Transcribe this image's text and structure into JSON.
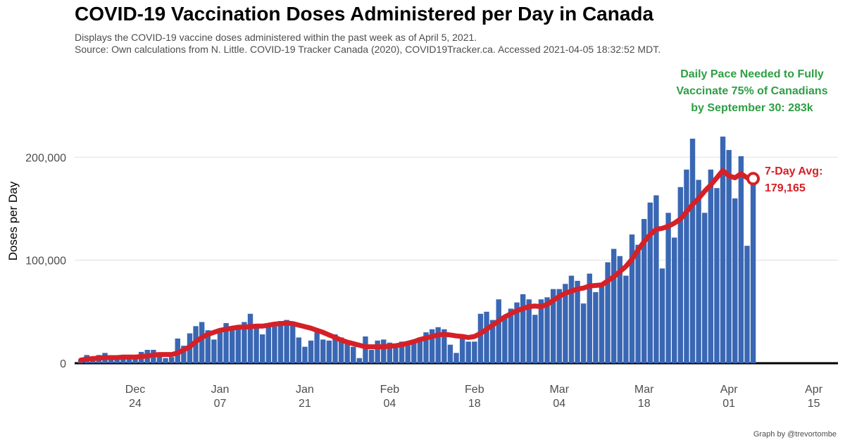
{
  "chart_data": {
    "type": "bar",
    "title": "COVID-19 Vaccination Doses Administered per Day in Canada",
    "subtitle": [
      "Displays the COVID-19 vaccine doses administered within the past week as of April 5, 2021.",
      "Source: Own calculations from N. Little. COVID-19 Tracker Canada (2020), COVID19Tracker.ca. Accessed 2021-04-05 18:32:52 MDT."
    ],
    "ylabel": "Doses per Day",
    "xlabel": "",
    "ylim": [
      0,
      205000
    ],
    "xlim": [
      "2020-12-14",
      "2021-04-19"
    ],
    "y_ticks": [
      {
        "value": 0,
        "label": "0"
      },
      {
        "value": 100000,
        "label": "100,000"
      },
      {
        "value": 200000,
        "label": "200,000"
      }
    ],
    "x_ticks": [
      {
        "date": "2020-12-24",
        "month": "Dec",
        "day": "24"
      },
      {
        "date": "2021-01-07",
        "month": "Jan",
        "day": "07"
      },
      {
        "date": "2021-01-21",
        "month": "Jan",
        "day": "21"
      },
      {
        "date": "2021-02-04",
        "month": "Feb",
        "day": "04"
      },
      {
        "date": "2021-02-18",
        "month": "Feb",
        "day": "18"
      },
      {
        "date": "2021-03-04",
        "month": "Mar",
        "day": "04"
      },
      {
        "date": "2021-03-18",
        "month": "Mar",
        "day": "18"
      },
      {
        "date": "2021-04-01",
        "month": "Apr",
        "day": "01"
      },
      {
        "date": "2021-04-15",
        "month": "Apr",
        "day": "15"
      }
    ],
    "grid": true,
    "start_date": "2020-12-15",
    "series": [
      {
        "values": [
          3000,
          8000,
          6000,
          8000,
          10000,
          7000,
          4000,
          5000,
          6000,
          5000,
          11000,
          13000,
          13000,
          8000,
          5000,
          6000,
          24000,
          17000,
          29000,
          36000,
          40000,
          32000,
          23000,
          33000,
          39000,
          33000,
          35000,
          40000,
          48000,
          34000,
          28000,
          36000,
          40000,
          41000,
          42000,
          38000,
          25000,
          16000,
          22000,
          30000,
          23000,
          22000,
          28000,
          25000,
          21000,
          16000,
          5000,
          26000,
          13000,
          22000,
          23000,
          20000,
          15000,
          21000,
          21000,
          20000,
          25000,
          30000,
          33000,
          35000,
          33000,
          18000,
          10000,
          26000,
          21000,
          21000,
          48000,
          50000,
          42000,
          62000,
          45000,
          53000,
          59000,
          67000,
          62000,
          47000,
          62000,
          64000,
          72000,
          72000,
          77000,
          85000,
          80000,
          58000,
          87000,
          69000,
          75000,
          98000,
          111000,
          104000,
          85000,
          125000,
          115000,
          140000,
          156000,
          163000,
          92000,
          146000,
          122000,
          171000,
          188000,
          218000,
          178000,
          146000,
          188000,
          170000,
          220000,
          207000,
          160000,
          201000,
          114000,
          184000
        ]
      },
      {
        "name": "7-Day Avg",
        "values": [
          3000,
          4000,
          4500,
          5000,
          5500,
          5500,
          5500,
          6000,
          6000,
          6000,
          6500,
          7000,
          8000,
          8500,
          8500,
          8500,
          10000,
          13000,
          16000,
          21000,
          25000,
          28000,
          30000,
          32000,
          33000,
          34000,
          35000,
          35000,
          35500,
          36000,
          36000,
          37000,
          38000,
          38500,
          39000,
          38500,
          37000,
          35500,
          34000,
          32000,
          30000,
          27500,
          25000,
          22500,
          20500,
          19000,
          17500,
          16000,
          16000,
          16000,
          16000,
          16500,
          17000,
          18000,
          19500,
          21000,
          23000,
          24500,
          26000,
          27500,
          28000,
          27500,
          26500,
          26000,
          25000,
          26000,
          29000,
          33000,
          37000,
          41000,
          45000,
          48000,
          51000,
          53000,
          55000,
          55500,
          55000,
          57000,
          61000,
          65000,
          68000,
          70000,
          72000,
          73000,
          75000,
          75500,
          76000,
          80000,
          84000,
          89000,
          94000,
          101000,
          110000,
          118000,
          125000,
          130000,
          131000,
          133000,
          136000,
          140000,
          147000,
          154000,
          160000,
          167000,
          173000,
          180000,
          187000,
          182000,
          180000,
          184000,
          180000,
          179165
        ]
      }
    ],
    "annotations": [
      {
        "text": "Daily Pace Needed to Fully\nVaccinate 75% of Canadians\nby September 30: 283k",
        "color": "#2e9e44"
      },
      {
        "lines": [
          "7-Day Avg:",
          "179,165"
        ],
        "color": "#d62027"
      }
    ],
    "colors": {
      "bars": "#3a67b4",
      "avg_line": "#d62027",
      "pace": "#2e9e44"
    }
  },
  "credit": "Graph by @trevortombe"
}
